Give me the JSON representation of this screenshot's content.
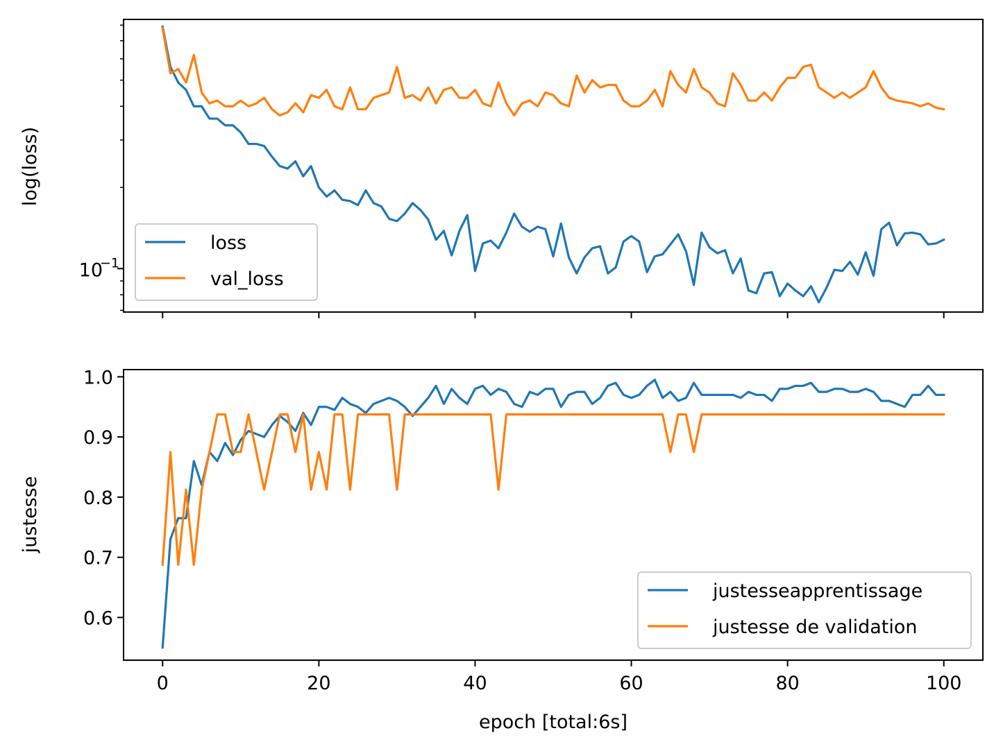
{
  "chart_data": [
    {
      "type": "line",
      "xlabel": "",
      "ylabel": "log(loss)",
      "yscale": "log",
      "xlim": [
        -5,
        105
      ],
      "ylim": [
        0.069,
        0.84
      ],
      "x_ticks": [
        0,
        20,
        40,
        60,
        80,
        100
      ],
      "x_tick_labels_visible": false,
      "y_major_ticks": [
        {
          "value": 0.1,
          "base": "10",
          "exp": "−1"
        }
      ],
      "y_minor_ticks": [
        0.07,
        0.08,
        0.09,
        0.2,
        0.3,
        0.4,
        0.5,
        0.6,
        0.7,
        0.8
      ],
      "grid": false,
      "legend_placement": "lower-left",
      "x": [
        0,
        1,
        2,
        3,
        4,
        5,
        6,
        7,
        8,
        9,
        10,
        11,
        12,
        13,
        14,
        15,
        16,
        17,
        18,
        19,
        20,
        21,
        22,
        23,
        24,
        25,
        26,
        27,
        28,
        29,
        30,
        31,
        32,
        33,
        34,
        35,
        36,
        37,
        38,
        39,
        40,
        41,
        42,
        43,
        44,
        45,
        46,
        47,
        48,
        49,
        50,
        51,
        52,
        53,
        54,
        55,
        56,
        57,
        58,
        59,
        60,
        61,
        62,
        63,
        64,
        65,
        66,
        67,
        68,
        69,
        70,
        71,
        72,
        73,
        74,
        75,
        76,
        77,
        78,
        79,
        80,
        81,
        82,
        83,
        84,
        85,
        86,
        87,
        88,
        89,
        90,
        91,
        92,
        93,
        94,
        95,
        96,
        97,
        98,
        99,
        100
      ],
      "series": [
        {
          "name": "loss",
          "color": "#1f77b4",
          "values": [
            0.79,
            0.56,
            0.49,
            0.46,
            0.4,
            0.4,
            0.36,
            0.36,
            0.34,
            0.34,
            0.32,
            0.29,
            0.29,
            0.285,
            0.26,
            0.24,
            0.235,
            0.25,
            0.22,
            0.24,
            0.2,
            0.185,
            0.195,
            0.18,
            0.178,
            0.172,
            0.195,
            0.175,
            0.17,
            0.153,
            0.15,
            0.16,
            0.175,
            0.165,
            0.152,
            0.128,
            0.138,
            0.112,
            0.138,
            0.158,
            0.098,
            0.124,
            0.127,
            0.119,
            0.136,
            0.16,
            0.143,
            0.137,
            0.143,
            0.14,
            0.111,
            0.147,
            0.11,
            0.096,
            0.11,
            0.119,
            0.121,
            0.096,
            0.101,
            0.126,
            0.132,
            0.126,
            0.097,
            0.111,
            0.113,
            0.123,
            0.134,
            0.116,
            0.087,
            0.136,
            0.12,
            0.114,
            0.117,
            0.096,
            0.109,
            0.083,
            0.081,
            0.096,
            0.097,
            0.079,
            0.088,
            0.083,
            0.079,
            0.086,
            0.075,
            0.085,
            0.099,
            0.098,
            0.106,
            0.095,
            0.115,
            0.094,
            0.14,
            0.148,
            0.122,
            0.135,
            0.136,
            0.134,
            0.123,
            0.124,
            0.128
          ]
        },
        {
          "name": "val_loss",
          "color": "#ff7f0e",
          "values": [
            0.78,
            0.53,
            0.55,
            0.49,
            0.62,
            0.45,
            0.41,
            0.42,
            0.4,
            0.4,
            0.42,
            0.4,
            0.41,
            0.43,
            0.39,
            0.37,
            0.38,
            0.41,
            0.38,
            0.44,
            0.43,
            0.46,
            0.4,
            0.39,
            0.47,
            0.39,
            0.39,
            0.43,
            0.44,
            0.45,
            0.56,
            0.43,
            0.44,
            0.42,
            0.47,
            0.41,
            0.46,
            0.47,
            0.43,
            0.43,
            0.46,
            0.41,
            0.4,
            0.49,
            0.41,
            0.37,
            0.41,
            0.42,
            0.4,
            0.45,
            0.44,
            0.41,
            0.4,
            0.52,
            0.45,
            0.5,
            0.47,
            0.48,
            0.48,
            0.42,
            0.4,
            0.4,
            0.42,
            0.46,
            0.4,
            0.54,
            0.48,
            0.45,
            0.55,
            0.47,
            0.45,
            0.41,
            0.4,
            0.53,
            0.48,
            0.42,
            0.42,
            0.45,
            0.42,
            0.47,
            0.51,
            0.51,
            0.56,
            0.57,
            0.47,
            0.45,
            0.43,
            0.45,
            0.43,
            0.45,
            0.47,
            0.54,
            0.47,
            0.43,
            0.42,
            0.415,
            0.41,
            0.4,
            0.41,
            0.395,
            0.39
          ]
        }
      ]
    },
    {
      "type": "line",
      "xlabel": "epoch [total:6s]",
      "ylabel": "justesse",
      "xlim": [
        -5,
        105
      ],
      "ylim": [
        0.529,
        1.012
      ],
      "x_ticks": [
        0,
        20,
        40,
        60,
        80,
        100
      ],
      "x_tick_labels": [
        "0",
        "20",
        "40",
        "60",
        "80",
        "100"
      ],
      "y_ticks": [
        0.6,
        0.7,
        0.8,
        0.9,
        1.0
      ],
      "y_tick_labels": [
        "0.6",
        "0.7",
        "0.8",
        "0.9",
        "1.0"
      ],
      "grid": false,
      "legend_placement": "lower-right",
      "x": [
        0,
        1,
        2,
        3,
        4,
        5,
        6,
        7,
        8,
        9,
        10,
        11,
        12,
        13,
        14,
        15,
        16,
        17,
        18,
        19,
        20,
        21,
        22,
        23,
        24,
        25,
        26,
        27,
        28,
        29,
        30,
        31,
        32,
        33,
        34,
        35,
        36,
        37,
        38,
        39,
        40,
        41,
        42,
        43,
        44,
        45,
        46,
        47,
        48,
        49,
        50,
        51,
        52,
        53,
        54,
        55,
        56,
        57,
        58,
        59,
        60,
        61,
        62,
        63,
        64,
        65,
        66,
        67,
        68,
        69,
        70,
        71,
        72,
        73,
        74,
        75,
        76,
        77,
        78,
        79,
        80,
        81,
        82,
        83,
        84,
        85,
        86,
        87,
        88,
        89,
        90,
        91,
        92,
        93,
        94,
        95,
        96,
        97,
        98,
        99,
        100
      ],
      "series": [
        {
          "name": "justesseapprentissage",
          "color": "#1f77b4",
          "values": [
            0.55,
            0.73,
            0.765,
            0.765,
            0.86,
            0.82,
            0.875,
            0.86,
            0.89,
            0.87,
            0.895,
            0.91,
            0.905,
            0.9,
            0.92,
            0.935,
            0.925,
            0.91,
            0.94,
            0.92,
            0.95,
            0.95,
            0.945,
            0.965,
            0.955,
            0.95,
            0.94,
            0.955,
            0.96,
            0.965,
            0.96,
            0.95,
            0.935,
            0.95,
            0.965,
            0.985,
            0.955,
            0.98,
            0.965,
            0.955,
            0.98,
            0.985,
            0.97,
            0.98,
            0.975,
            0.955,
            0.95,
            0.975,
            0.97,
            0.98,
            0.98,
            0.95,
            0.97,
            0.975,
            0.975,
            0.955,
            0.965,
            0.985,
            0.99,
            0.97,
            0.965,
            0.97,
            0.985,
            0.995,
            0.965,
            0.975,
            0.96,
            0.965,
            0.99,
            0.97,
            0.97,
            0.97,
            0.97,
            0.97,
            0.965,
            0.975,
            0.97,
            0.97,
            0.96,
            0.98,
            0.98,
            0.985,
            0.985,
            0.99,
            0.975,
            0.975,
            0.98,
            0.98,
            0.975,
            0.975,
            0.98,
            0.975,
            0.96,
            0.96,
            0.955,
            0.95,
            0.97,
            0.97,
            0.985,
            0.97,
            0.97
          ]
        },
        {
          "name": "justesse de validation",
          "color": "#ff7f0e",
          "values": [
            0.6875,
            0.875,
            0.6875,
            0.8125,
            0.6875,
            0.8125,
            0.875,
            0.9375,
            0.9375,
            0.875,
            0.875,
            0.9375,
            0.875,
            0.8125,
            0.875,
            0.9375,
            0.9375,
            0.875,
            0.9375,
            0.8125,
            0.875,
            0.8125,
            0.9375,
            0.9375,
            0.8125,
            0.9375,
            0.9375,
            0.9375,
            0.9375,
            0.9375,
            0.8125,
            0.9375,
            0.9375,
            0.9375,
            0.9375,
            0.9375,
            0.9375,
            0.9375,
            0.9375,
            0.9375,
            0.9375,
            0.9375,
            0.9375,
            0.8125,
            0.9375,
            0.9375,
            0.9375,
            0.9375,
            0.9375,
            0.9375,
            0.9375,
            0.9375,
            0.9375,
            0.9375,
            0.9375,
            0.9375,
            0.9375,
            0.9375,
            0.9375,
            0.9375,
            0.9375,
            0.9375,
            0.9375,
            0.9375,
            0.9375,
            0.875,
            0.9375,
            0.9375,
            0.875,
            0.9375,
            0.9375,
            0.9375,
            0.9375,
            0.9375,
            0.9375,
            0.9375,
            0.9375,
            0.9375,
            0.9375,
            0.9375,
            0.9375,
            0.9375,
            0.9375,
            0.9375,
            0.9375,
            0.9375,
            0.9375,
            0.9375,
            0.9375,
            0.9375,
            0.9375,
            0.9375,
            0.9375,
            0.9375,
            0.9375,
            0.9375,
            0.9375,
            0.9375,
            0.9375,
            0.9375,
            0.9375
          ]
        }
      ]
    }
  ]
}
